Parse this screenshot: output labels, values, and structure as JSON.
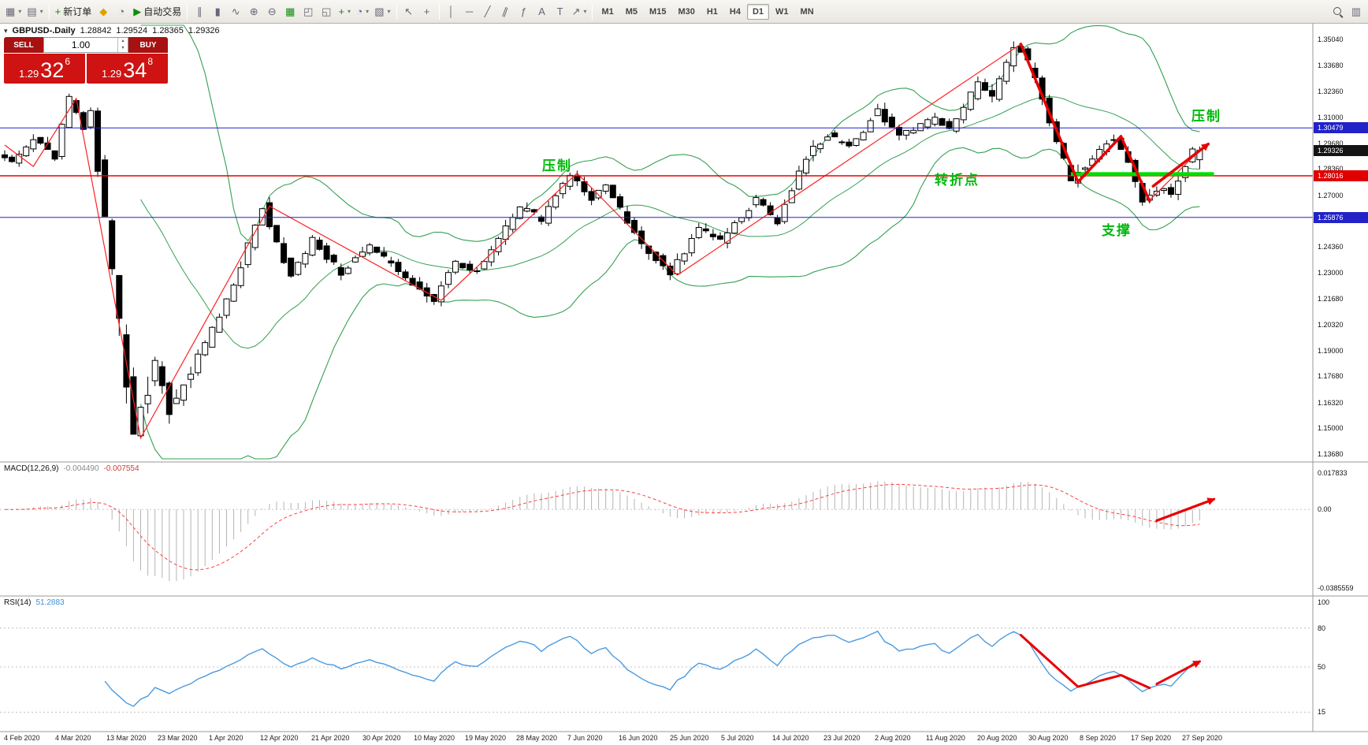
{
  "icons": {
    "new_chart": "▦",
    "profiles": "▤",
    "new_order_plus": "+",
    "metaeditor": "◆",
    "market_watch": "◔",
    "autotrading_play": "▶",
    "chart_bars": "∥",
    "chart_candles": "▮",
    "chart_line": "∿",
    "zoom_in": "⊕",
    "zoom_out": "⊖",
    "tile_windows": "▦",
    "cascade": "◰",
    "arrange": "◱",
    "indicators": "+",
    "periods": "◔",
    "templates": "▧",
    "caret": "▾",
    "cursor": "↖",
    "crosshair": "+",
    "vline": "│",
    "hline": "─",
    "trendline": "╱",
    "channel": "∥",
    "fibonacci": "ƒ",
    "text": "A",
    "label": "T",
    "shapes": "↗",
    "spin_up": "▴",
    "spin_down": "▾",
    "collapse": "▾",
    "window": "▥"
  },
  "toolbar": {
    "new_order": "新订单",
    "autotrading": "自动交易",
    "timeframes": [
      "M1",
      "M5",
      "M15",
      "M30",
      "H1",
      "H4",
      "D1",
      "W1",
      "MN"
    ],
    "active_timeframe": "D1"
  },
  "symbol_info": {
    "title": "GBPUSD-.Daily",
    "open": "1.28842",
    "high": "1.29524",
    "low": "1.28365",
    "close": "1.29326"
  },
  "one_click": {
    "sell": "SELL",
    "buy": "BUY",
    "volume": "1.00",
    "sell_big": "1.29",
    "sell_mid": "32",
    "sell_sup": "6",
    "buy_big": "1.29",
    "buy_mid": "34",
    "buy_sup": "8"
  },
  "annotations": {
    "resistance_mid": "压制",
    "resistance_top": "压制",
    "turning_point": "转折点",
    "support": "支撑",
    "color": "#00b80b"
  },
  "panels": {
    "macd": {
      "name": "MACD(12,26,9)",
      "value_main": "-0.004490",
      "value_signal": "-0.007554",
      "axis": [
        "0.017833",
        "0.00",
        "-0.0385559"
      ]
    },
    "rsi": {
      "name": "RSI(14)",
      "value": "51.2883",
      "axis": [
        "100",
        "80",
        "50",
        "15"
      ]
    }
  },
  "price_axis": {
    "labels": [
      "1.35040",
      "1.33680",
      "1.32360",
      "1.31000",
      "1.29680",
      "1.28360",
      "1.27000",
      "1.25680",
      "1.24360",
      "1.23000",
      "1.21680",
      "1.20320",
      "1.19000",
      "1.17680",
      "1.16320",
      "1.15000",
      "1.13680"
    ],
    "badges": [
      {
        "text": "1.30479",
        "price": 1.30479,
        "bg": "#2222c8"
      },
      {
        "text": "1.29326",
        "price": 1.29326,
        "bg": "#141414"
      },
      {
        "text": "1.28016",
        "price": 1.28016,
        "bg": "#e00000"
      },
      {
        "text": "1.25876",
        "price": 1.25876,
        "bg": "#2222c8"
      }
    ]
  },
  "chart_data": {
    "type": "candlestick",
    "symbol": "GBPUSD",
    "timeframe": "Daily",
    "last_ohlc": {
      "open": 1.28842,
      "high": 1.29524,
      "low": 1.28365,
      "close": 1.29326
    },
    "price_range": {
      "top": 1.3504,
      "bottom": 1.1368
    },
    "num_candles": 168,
    "path_anchors": [
      [
        0,
        1.292
      ],
      [
        2,
        1.2865
      ],
      [
        5,
        1.299
      ],
      [
        8,
        1.29
      ],
      [
        10,
        1.32
      ],
      [
        12,
        1.305
      ],
      [
        13,
        1.3145
      ],
      [
        19,
        1.145
      ],
      [
        22,
        1.185
      ],
      [
        24,
        1.16
      ],
      [
        30,
        1.2
      ],
      [
        33,
        1.224
      ],
      [
        37,
        1.2645
      ],
      [
        41,
        1.228
      ],
      [
        44,
        1.247
      ],
      [
        48,
        1.23
      ],
      [
        52,
        1.244
      ],
      [
        57,
        1.228
      ],
      [
        61,
        1.216
      ],
      [
        64,
        1.236
      ],
      [
        67,
        1.23
      ],
      [
        73,
        1.264
      ],
      [
        76,
        1.257
      ],
      [
        80,
        1.2815
      ],
      [
        83,
        1.268
      ],
      [
        85,
        1.275
      ],
      [
        90,
        1.2455
      ],
      [
        94,
        1.229
      ],
      [
        98,
        1.253
      ],
      [
        101,
        1.247
      ],
      [
        106,
        1.2675
      ],
      [
        109,
        1.256
      ],
      [
        113,
        1.29
      ],
      [
        116,
        1.301
      ],
      [
        119,
        1.2945
      ],
      [
        123,
        1.314
      ],
      [
        126,
        1.3
      ],
      [
        131,
        1.31
      ],
      [
        133,
        1.3035
      ],
      [
        137,
        1.328
      ],
      [
        139,
        1.32
      ],
      [
        142,
        1.348
      ],
      [
        145,
        1.332
      ],
      [
        147,
        1.308
      ],
      [
        150,
        1.277
      ],
      [
        153,
        1.29
      ],
      [
        156,
        1.3
      ],
      [
        158,
        1.288
      ],
      [
        160,
        1.2675
      ],
      [
        162,
        1.274
      ],
      [
        164,
        1.272
      ],
      [
        167,
        1.2933
      ]
    ],
    "zigzag": [
      [
        0,
        1.296
      ],
      [
        4,
        1.285
      ],
      [
        10,
        1.32
      ],
      [
        19,
        1.145
      ],
      [
        37,
        1.2645
      ],
      [
        61,
        1.216
      ],
      [
        80,
        1.2815
      ],
      [
        94,
        1.229
      ],
      [
        142,
        1.348
      ],
      [
        150,
        1.277
      ],
      [
        156,
        1.3
      ],
      [
        160,
        1.2675
      ],
      [
        167,
        1.2933
      ]
    ],
    "hlines": [
      {
        "price": 1.30479,
        "color": "#2222c8",
        "width": 1
      },
      {
        "price": 1.28016,
        "color": "#e80000",
        "width": 1.5
      },
      {
        "price": 1.25876,
        "color": "#2222c8",
        "width": 1
      }
    ],
    "support_line": {
      "x1_index": 149,
      "x2_index": 169,
      "price": 1.281,
      "color": "#00dd00",
      "width": 5
    },
    "drawn_arrows": {
      "price_polyline": [
        [
          142,
          1.348
        ],
        [
          150,
          1.277
        ],
        [
          156,
          1.3005
        ],
        [
          160,
          1.2672
        ]
      ],
      "price_arrow": [
        [
          160.5,
          1.2748
        ],
        [
          168.2,
          1.2965
        ]
      ],
      "macd_arrow": [
        [
          161,
          -0.0055
        ],
        [
          169,
          0.005
        ]
      ],
      "rsi_polyline_indices": [
        142,
        150,
        156,
        160
      ],
      "rsi_arrow_to_index": 167
    },
    "indicators": {
      "bollinger": {
        "period": 20,
        "deviation": 2,
        "color": "#35a053"
      },
      "zigzag_color": "#ff2020",
      "macd": {
        "axis_max": 0.017833,
        "axis_min": -0.0385559
      },
      "rsi": {
        "levels": [
          80,
          50,
          15
        ]
      }
    },
    "x_tick_labels": [
      "4 Feb 2020",
      "4 Mar 2020",
      "13 Mar 2020",
      "23 Mar 2020",
      "1 Apr 2020",
      "12 Apr 2020",
      "21 Apr 2020",
      "30 Apr 2020",
      "10 May 2020",
      "19 May 2020",
      "28 May 2020",
      "7 Jun 2020",
      "16 Jun 2020",
      "25 Jun 2020",
      "5 Jul 2020",
      "14 Jul 2020",
      "23 Jul 2020",
      "2 Aug 2020",
      "11 Aug 2020",
      "20 Aug 2020",
      "30 Aug 2020",
      "8 Sep 2020",
      "17 Sep 2020",
      "27 Sep 2020"
    ]
  }
}
